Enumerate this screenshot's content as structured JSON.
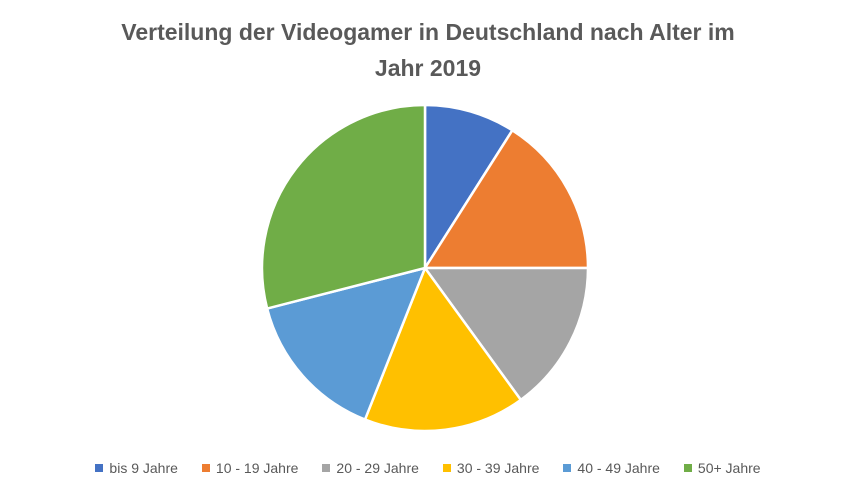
{
  "chart_data": {
    "type": "pie",
    "title": [
      "Verteilung der Videogamer in Deutschland nach Alter im",
      "Jahr 2019"
    ],
    "categories": [
      "bis 9 Jahre",
      "10 - 19 Jahre",
      "20 - 29 Jahre",
      "30 - 39 Jahre",
      "40 - 49 Jahre",
      "50+ Jahre"
    ],
    "values": [
      9,
      16,
      15,
      16,
      15,
      29
    ],
    "unit": "%",
    "colors": [
      "#4472C4",
      "#ED7D31",
      "#A5A5A5",
      "#FFC000",
      "#5B9BD5",
      "#70AD47"
    ],
    "start_angle_deg": 0,
    "direction": "clockwise",
    "legend_position": "bottom"
  }
}
